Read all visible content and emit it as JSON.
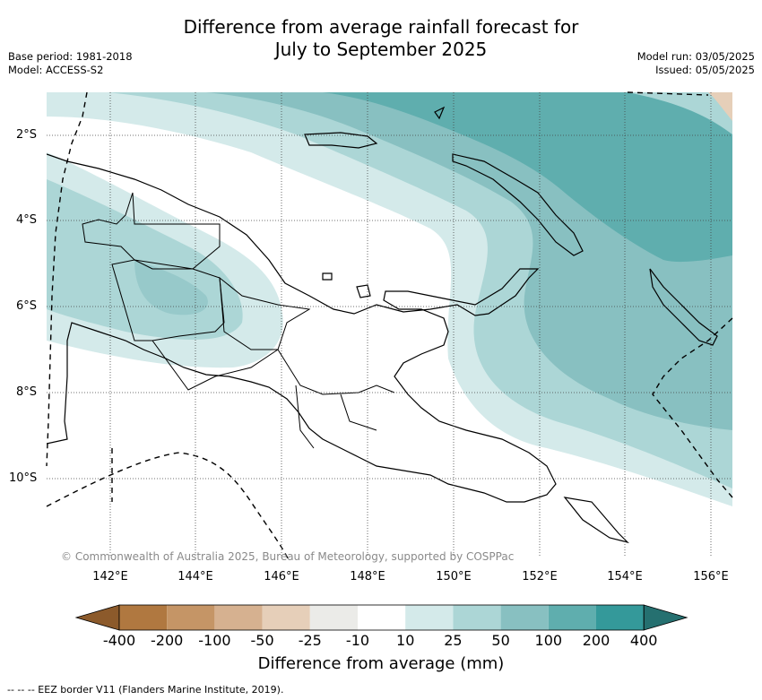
{
  "header": {
    "title_line1": "Difference from average rainfall forecast for",
    "title_line2": "July to September 2025",
    "base_period": "Base period: 1981-2018",
    "model": "Model: ACCESS-S2",
    "model_run": "Model run: 03/05/2025",
    "issued": "Issued: 05/05/2025"
  },
  "map": {
    "region": "Papua New Guinea",
    "lat_ticks": [
      "2°S",
      "4°S",
      "6°S",
      "8°S",
      "10°S"
    ],
    "lon_ticks": [
      "142°E",
      "144°E",
      "146°E",
      "148°E",
      "150°E",
      "152°E",
      "154°E",
      "156°E"
    ],
    "copyright": "© Commonwealth of Australia 2025, Bureau of Meteorology, supported by COSPPac",
    "grid": true
  },
  "legend": {
    "title": "Difference from average (mm)",
    "labels": [
      "-400",
      "-200",
      "-100",
      "-50",
      "-25",
      "-10",
      "10",
      "25",
      "50",
      "100",
      "200",
      "400"
    ],
    "colors": [
      "#8c5a2b",
      "#b07840",
      "#c59566",
      "#d6b190",
      "#e6cfb9",
      "#ebebe8",
      "#ffffff",
      "#d4eaea",
      "#acd6d6",
      "#88c0c1",
      "#5faeae",
      "#34999a",
      "#257070"
    ]
  },
  "footer": {
    "eez_note": "-- -- -- EEZ border V11 (Flanders Marine Institute, 2019)."
  }
}
